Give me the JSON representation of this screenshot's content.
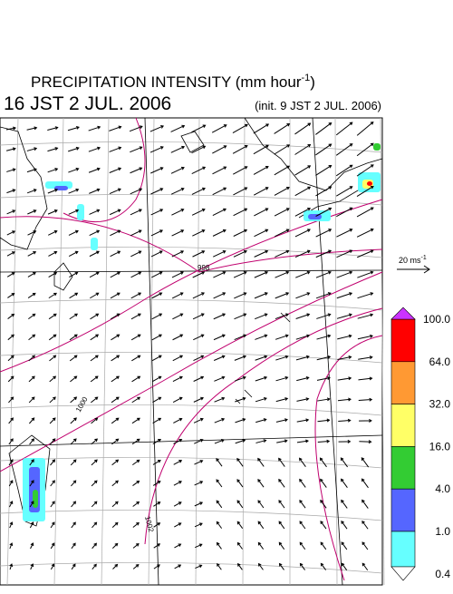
{
  "title": {
    "main": "PRECIPITATION INTENSITY (mm hour",
    "sup": "-1",
    "end": ")"
  },
  "valid_time": "16 JST 2 JUL. 2006",
  "init_time": "(init. 9 JST 2 JUL. 2006)",
  "wind_scale": {
    "main": "20 ms",
    "sup": "-1"
  },
  "isobar_labels": [
    "998",
    "1000",
    "1002"
  ],
  "colorbar": {
    "ticks": [
      {
        "value": 100,
        "label": "100.0"
      },
      {
        "value": 64,
        "label": "64.0"
      },
      {
        "value": 32,
        "label": "32.0"
      },
      {
        "value": 16,
        "label": "16.0"
      },
      {
        "value": 4,
        "label": "4.0"
      },
      {
        "value": 1,
        "label": "1.0"
      },
      {
        "value": 0.4,
        "label": "0.4"
      }
    ],
    "colors": [
      "#ff0000",
      "#ff9933",
      "#ffff66",
      "#33cc33",
      "#5566ff",
      "#66ffff"
    ],
    "over_color": "#cc33ff",
    "under_color": "#ffffff"
  }
}
